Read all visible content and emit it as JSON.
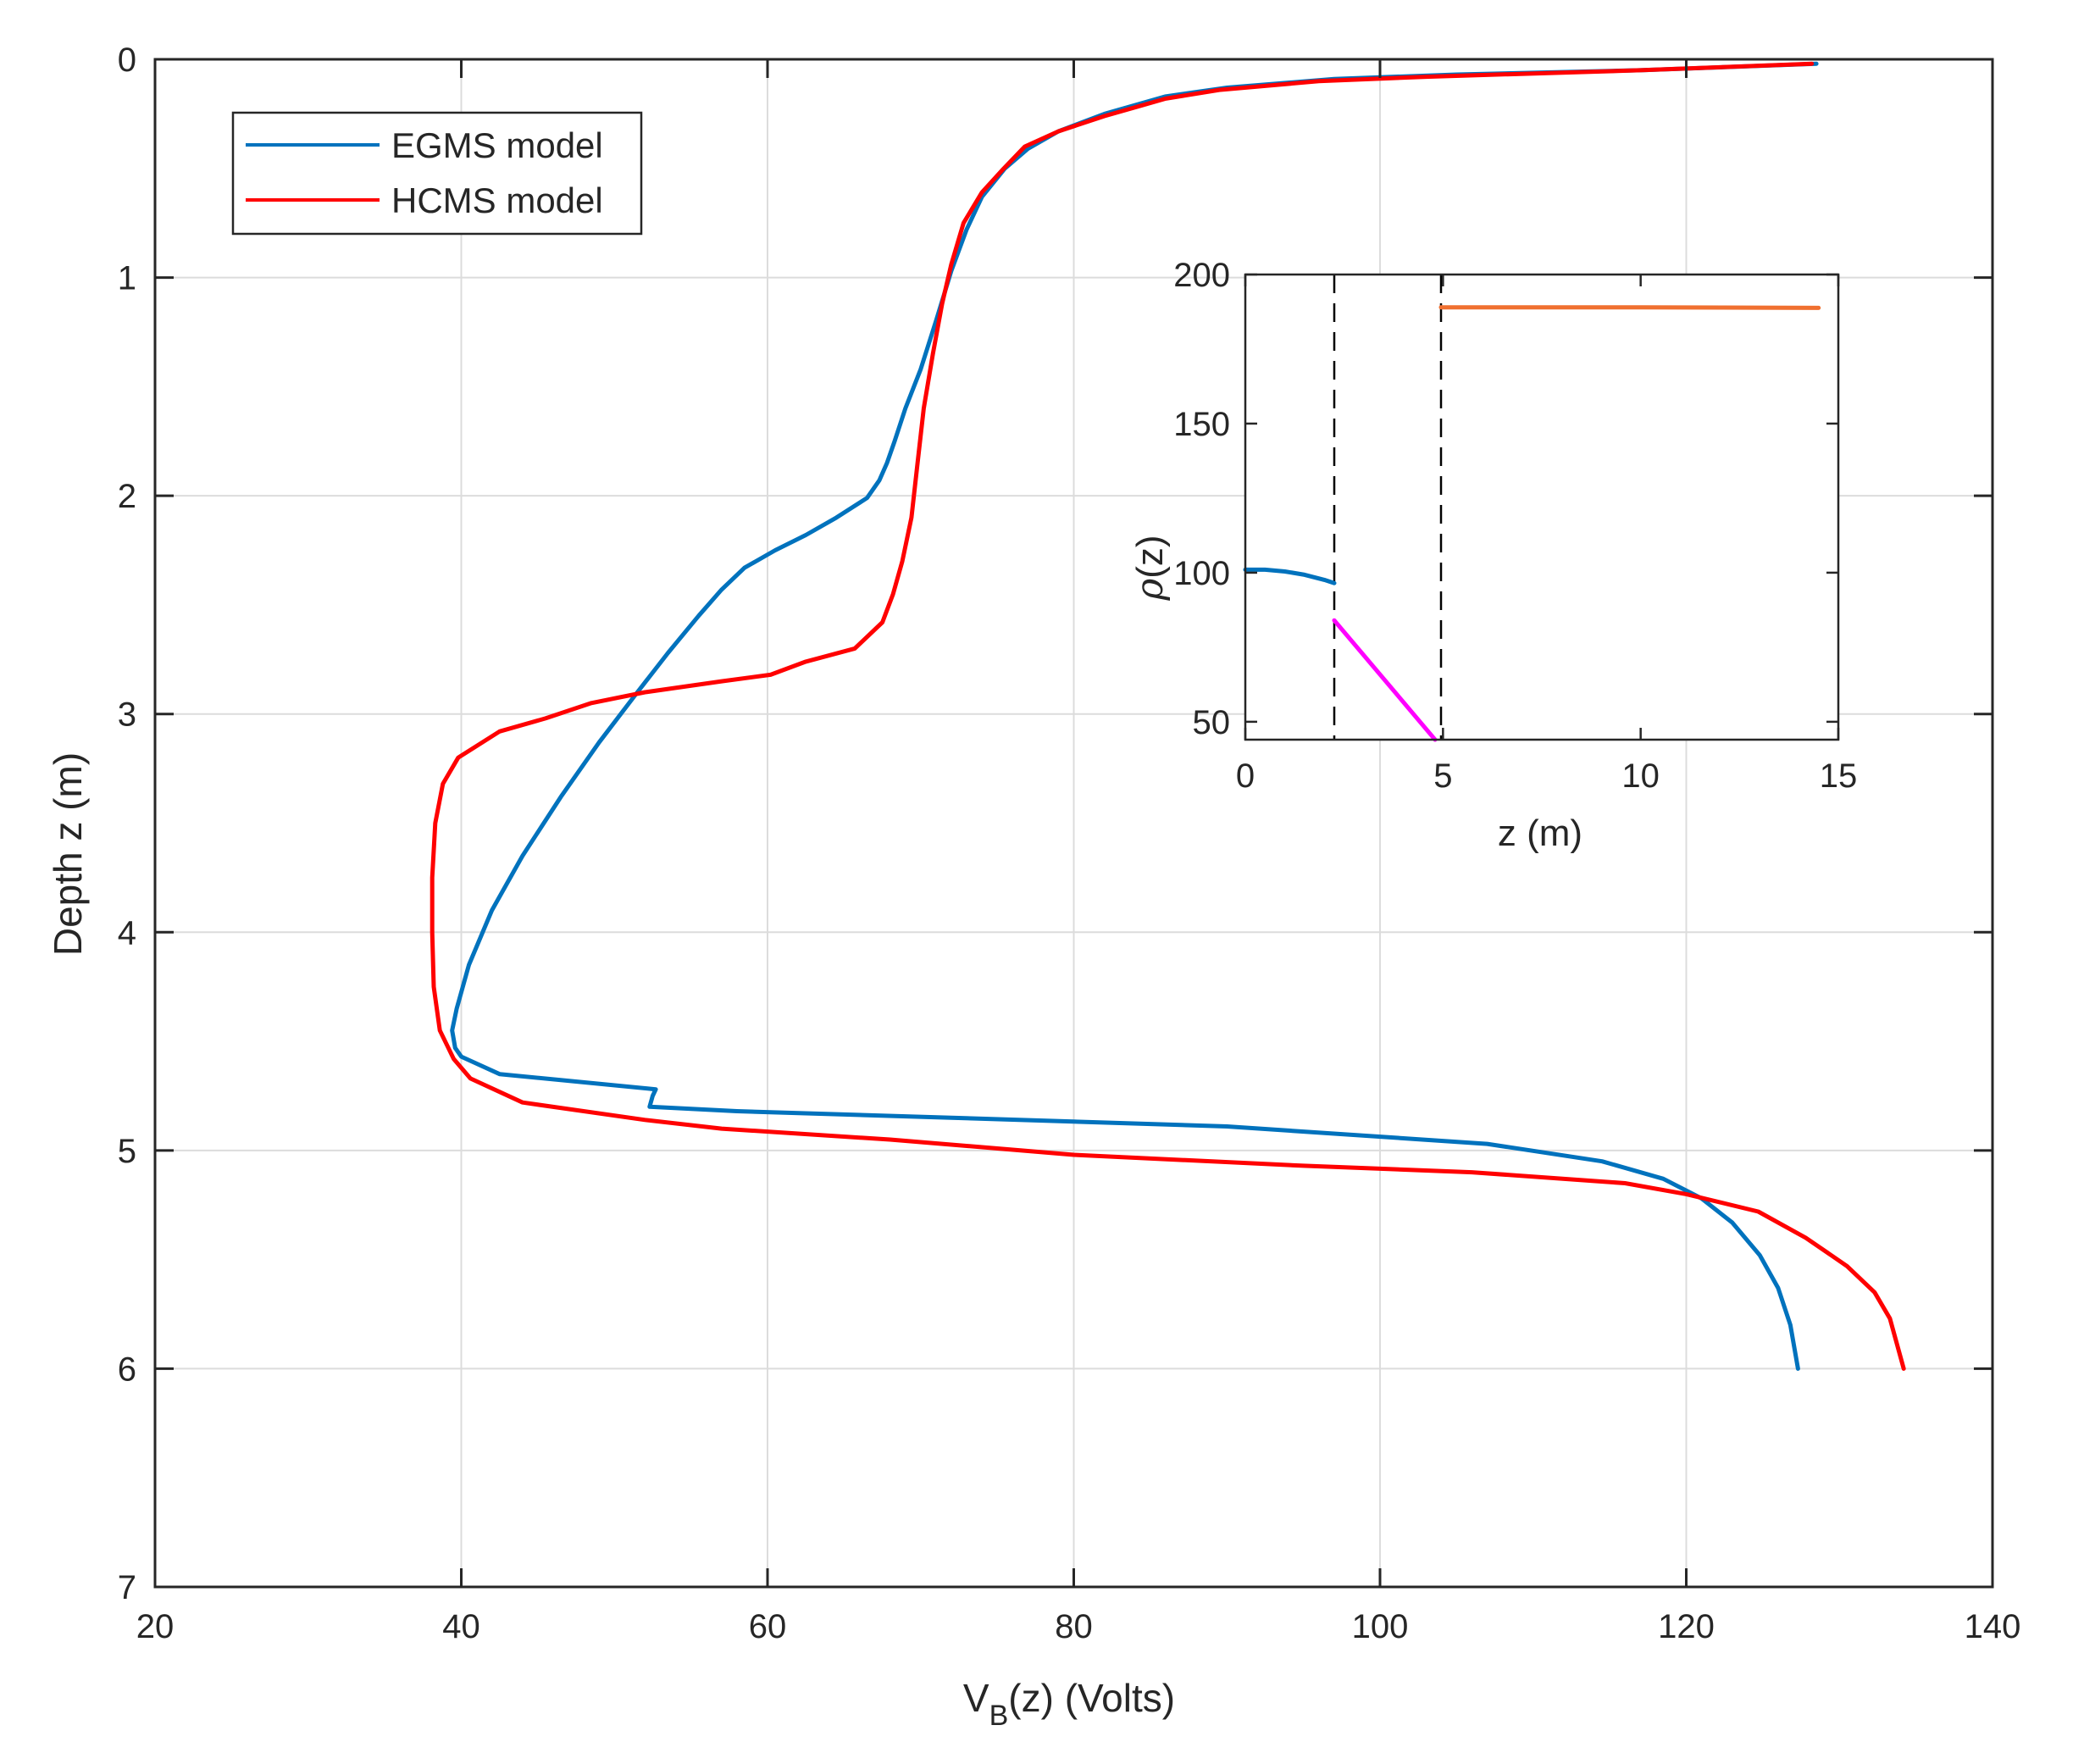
{
  "chart_data": [
    {
      "type": "line",
      "title": "",
      "xlabel_main": "V",
      "xlabel_sub": "B",
      "xlabel_rest": "(z)  (Volts)",
      "ylabel": "Depth z  (m)",
      "xlim": [
        20,
        140
      ],
      "ylim": [
        0,
        7
      ],
      "y_reversed": true,
      "xticks": [
        20,
        40,
        60,
        80,
        100,
        120,
        140
      ],
      "yticks": [
        0,
        1,
        2,
        3,
        4,
        5,
        6,
        7
      ],
      "grid": true,
      "legend_position": "top-left",
      "series": [
        {
          "name": "EGMS model",
          "color": "#0072BD",
          "points": [
            [
              128.5,
              0.02
            ],
            [
              117,
              0.05
            ],
            [
              105,
              0.07
            ],
            [
              97,
              0.09
            ],
            [
              90,
              0.13
            ],
            [
              86,
              0.17
            ],
            [
              82,
              0.25
            ],
            [
              79,
              0.33
            ],
            [
              77,
              0.41
            ],
            [
              75.5,
              0.5
            ],
            [
              74,
              0.63
            ],
            [
              73,
              0.78
            ],
            [
              72,
              0.97
            ],
            [
              71,
              1.2
            ],
            [
              70,
              1.42
            ],
            [
              69,
              1.6
            ],
            [
              68.3,
              1.75
            ],
            [
              67.8,
              1.85
            ],
            [
              67.3,
              1.93
            ],
            [
              66.5,
              2.01
            ],
            [
              64.5,
              2.1
            ],
            [
              62.5,
              2.18
            ],
            [
              60.5,
              2.25
            ],
            [
              58.5,
              2.33
            ],
            [
              57,
              2.43
            ],
            [
              55.5,
              2.55
            ],
            [
              53.5,
              2.72
            ],
            [
              51.5,
              2.9
            ],
            [
              49,
              3.13
            ],
            [
              46.5,
              3.38
            ],
            [
              44,
              3.65
            ],
            [
              42,
              3.9
            ],
            [
              40.5,
              4.15
            ],
            [
              39.7,
              4.35
            ],
            [
              39.4,
              4.45
            ],
            [
              39.6,
              4.53
            ],
            [
              40,
              4.57
            ],
            [
              42.5,
              4.65
            ],
            [
              52.7,
              4.72
            ],
            [
              52.5,
              4.75
            ],
            [
              52.3,
              4.8
            ],
            [
              58,
              4.82
            ],
            [
              72,
              4.85
            ],
            [
              90,
              4.89
            ],
            [
              107,
              4.97
            ],
            [
              114.5,
              5.05
            ],
            [
              118.5,
              5.13
            ],
            [
              121,
              5.22
            ],
            [
              123,
              5.33
            ],
            [
              124.8,
              5.48
            ],
            [
              126,
              5.63
            ],
            [
              126.8,
              5.8
            ],
            [
              127.3,
              6.0
            ]
          ]
        },
        {
          "name": "HCMS model",
          "color": "#FF0000",
          "points": [
            [
              128.2,
              0.02
            ],
            [
              117,
              0.05
            ],
            [
              103,
              0.08
            ],
            [
              96,
              0.1
            ],
            [
              89.5,
              0.14
            ],
            [
              86,
              0.18
            ],
            [
              82,
              0.26
            ],
            [
              79,
              0.33
            ],
            [
              76.8,
              0.4
            ],
            [
              75.3,
              0.51
            ],
            [
              74,
              0.61
            ],
            [
              72.8,
              0.75
            ],
            [
              72,
              0.94
            ],
            [
              71.4,
              1.12
            ],
            [
              70.8,
              1.35
            ],
            [
              70.2,
              1.6
            ],
            [
              69.8,
              1.85
            ],
            [
              69.4,
              2.1
            ],
            [
              68.8,
              2.3
            ],
            [
              68.2,
              2.45
            ],
            [
              67.5,
              2.58
            ],
            [
              65.7,
              2.7
            ],
            [
              62.5,
              2.76
            ],
            [
              60.2,
              2.82
            ],
            [
              57,
              2.85
            ],
            [
              52,
              2.9
            ],
            [
              48.5,
              2.95
            ],
            [
              45.5,
              3.02
            ],
            [
              42.5,
              3.08
            ],
            [
              39.8,
              3.2
            ],
            [
              38.8,
              3.32
            ],
            [
              38.3,
              3.5
            ],
            [
              38.1,
              3.75
            ],
            [
              38.1,
              4.0
            ],
            [
              38.2,
              4.25
            ],
            [
              38.6,
              4.45
            ],
            [
              39.5,
              4.58
            ],
            [
              40.6,
              4.67
            ],
            [
              44,
              4.78
            ],
            [
              52,
              4.86
            ],
            [
              57,
              4.9
            ],
            [
              68,
              4.95
            ],
            [
              80,
              5.02
            ],
            [
              95,
              5.07
            ],
            [
              106,
              5.1
            ],
            [
              116,
              5.15
            ],
            [
              120,
              5.2
            ],
            [
              124.7,
              5.28
            ],
            [
              127.8,
              5.4
            ],
            [
              130.5,
              5.53
            ],
            [
              132.3,
              5.65
            ],
            [
              133.3,
              5.77
            ],
            [
              134.2,
              6.0
            ]
          ]
        }
      ]
    },
    {
      "type": "line",
      "title": "",
      "xlabel": "z (m)",
      "ylabel_greek": "ρ",
      "ylabel_rest": "(z)",
      "xlim": [
        0,
        15
      ],
      "ylim": [
        44,
        200
      ],
      "xticks": [
        0,
        5,
        10,
        15
      ],
      "yticks": [
        50,
        100,
        150,
        200
      ],
      "grid": false,
      "vlines": [
        2.25,
        4.95
      ],
      "series": [
        {
          "color": "#0072BD",
          "points": [
            [
              0,
              101
            ],
            [
              0.5,
              101
            ],
            [
              1.0,
              100.4
            ],
            [
              1.5,
              99.3
            ],
            [
              2.0,
              97.6
            ],
            [
              2.25,
              96.5
            ]
          ]
        },
        {
          "color": "#FF00FF",
          "points": [
            [
              2.25,
              84
            ],
            [
              4.8,
              44
            ]
          ]
        },
        {
          "color": "#F07030",
          "points": [
            [
              4.95,
              189
            ],
            [
              10,
              189
            ],
            [
              14.5,
              188.8
            ]
          ]
        }
      ]
    }
  ]
}
